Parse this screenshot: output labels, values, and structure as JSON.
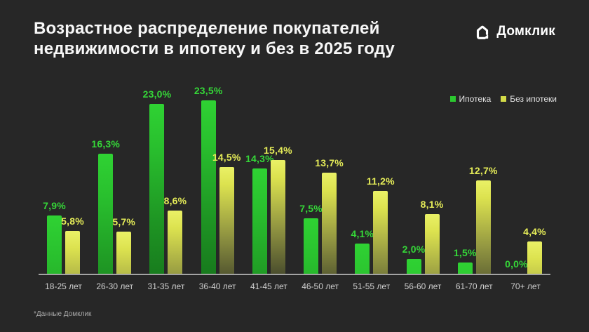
{
  "header": {
    "title_line1": "Возрастное распределение покупателей",
    "title_line2": "недвижимости в ипотеку и без в 2025 году",
    "brand": "Домклик"
  },
  "legend": {
    "items": [
      {
        "label": "Ипотека",
        "color": "#2bc82f"
      },
      {
        "label": "Без ипотеки",
        "color": "#d3db48"
      }
    ],
    "position": "top-right"
  },
  "footer": {
    "note": "*Данные Домклик"
  },
  "colors": {
    "background": "#272727",
    "title_text": "#f7f7f7",
    "axis_line": "#a3a3a3",
    "category_text": "#cfcfcf",
    "mortgage_green": "#2bc82f",
    "no_mortgage_yellow": "#d3db48"
  },
  "chart_data": {
    "type": "bar",
    "title": "Возрастное распределение покупателей недвижимости в ипотеку и без в 2025 году",
    "categories": [
      "18-25 лет",
      "26-30 лет",
      "31-35 лет",
      "36-40 лет",
      "41-45 лет",
      "46-50 лет",
      "51-55 лет",
      "56-60 лет",
      "61-70 лет",
      "70+ лет"
    ],
    "series": [
      {
        "name": "Ипотека",
        "color": "#2bc82f",
        "values": [
          7.9,
          16.3,
          23.0,
          23.5,
          14.3,
          7.5,
          4.1,
          2.0,
          1.5,
          0.0
        ]
      },
      {
        "name": "Без ипотеки",
        "color": "#d3db48",
        "values": [
          5.8,
          5.7,
          8.6,
          14.5,
          15.4,
          13.7,
          11.2,
          8.1,
          12.7,
          4.4
        ]
      }
    ],
    "value_suffix": "%",
    "decimal_separator": ",",
    "xlabel": "",
    "ylabel": "",
    "ylim": [
      0,
      23.8
    ],
    "grid": false,
    "legend_position": "top-right",
    "data_labels": true,
    "source_note": "*Данные Домклик"
  }
}
